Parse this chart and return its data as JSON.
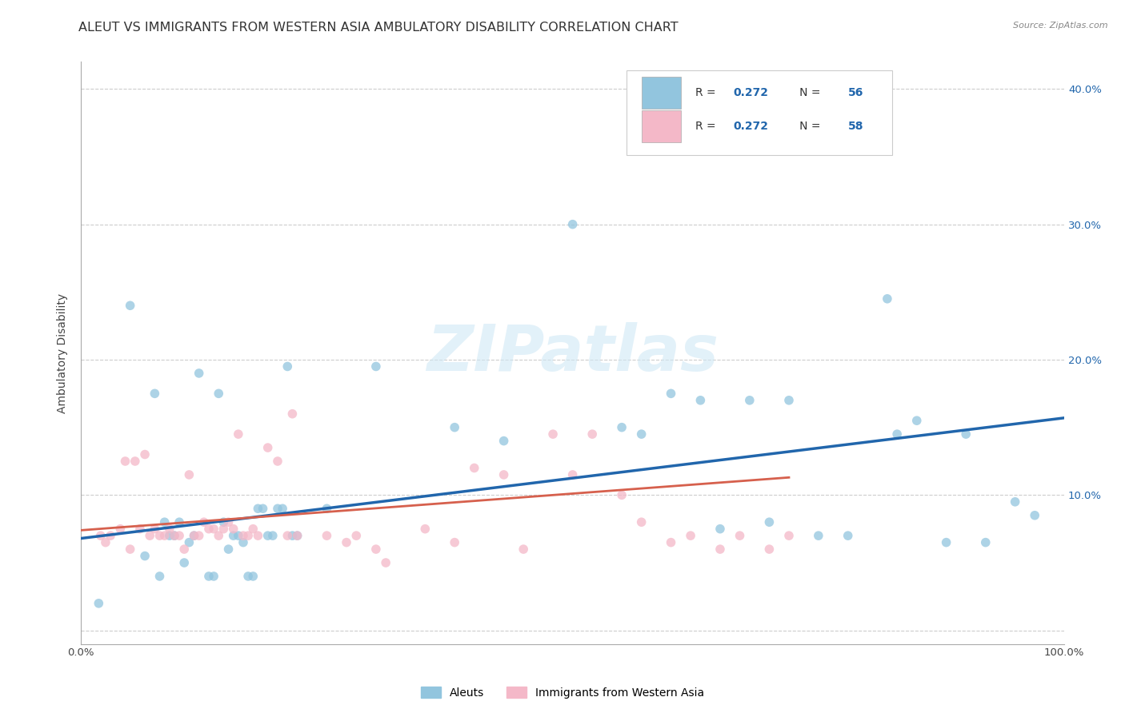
{
  "title": "ALEUT VS IMMIGRANTS FROM WESTERN ASIA AMBULATORY DISABILITY CORRELATION CHART",
  "source": "Source: ZipAtlas.com",
  "ylabel": "Ambulatory Disability",
  "xlim": [
    0,
    1.0
  ],
  "ylim": [
    -0.01,
    0.42
  ],
  "blue_color": "#92c5de",
  "pink_color": "#f4b8c8",
  "blue_line_color": "#2166ac",
  "pink_line_color": "#d6604d",
  "watermark_color": "#d0e8f5",
  "tick_color": "#2166ac",
  "label_color": "#444444",
  "grid_color": "#cccccc",
  "legend_label1": "Aleuts",
  "legend_label2": "Immigrants from Western Asia",
  "blue_x": [
    0.018,
    0.05,
    0.065,
    0.075,
    0.08,
    0.085,
    0.09,
    0.095,
    0.1,
    0.105,
    0.11,
    0.115,
    0.12,
    0.13,
    0.135,
    0.14,
    0.145,
    0.15,
    0.155,
    0.16,
    0.165,
    0.17,
    0.175,
    0.18,
    0.185,
    0.19,
    0.195,
    0.2,
    0.205,
    0.21,
    0.215,
    0.22,
    0.25,
    0.3,
    0.38,
    0.43,
    0.5,
    0.55,
    0.57,
    0.6,
    0.63,
    0.65,
    0.68,
    0.7,
    0.72,
    0.75,
    0.78,
    0.8,
    0.82,
    0.83,
    0.85,
    0.88,
    0.9,
    0.92,
    0.95,
    0.97
  ],
  "blue_y": [
    0.02,
    0.24,
    0.055,
    0.175,
    0.04,
    0.08,
    0.07,
    0.07,
    0.08,
    0.05,
    0.065,
    0.07,
    0.19,
    0.04,
    0.04,
    0.175,
    0.08,
    0.06,
    0.07,
    0.07,
    0.065,
    0.04,
    0.04,
    0.09,
    0.09,
    0.07,
    0.07,
    0.09,
    0.09,
    0.195,
    0.07,
    0.07,
    0.09,
    0.195,
    0.15,
    0.14,
    0.3,
    0.15,
    0.145,
    0.175,
    0.17,
    0.075,
    0.17,
    0.08,
    0.17,
    0.07,
    0.07,
    0.355,
    0.245,
    0.145,
    0.155,
    0.065,
    0.145,
    0.065,
    0.095,
    0.085
  ],
  "pink_x": [
    0.02,
    0.025,
    0.03,
    0.04,
    0.045,
    0.05,
    0.055,
    0.06,
    0.065,
    0.07,
    0.075,
    0.08,
    0.085,
    0.09,
    0.095,
    0.1,
    0.105,
    0.11,
    0.115,
    0.12,
    0.125,
    0.13,
    0.135,
    0.14,
    0.145,
    0.15,
    0.155,
    0.16,
    0.165,
    0.17,
    0.175,
    0.18,
    0.19,
    0.2,
    0.21,
    0.215,
    0.22,
    0.25,
    0.27,
    0.28,
    0.3,
    0.31,
    0.35,
    0.38,
    0.4,
    0.43,
    0.45,
    0.48,
    0.5,
    0.52,
    0.55,
    0.57,
    0.6,
    0.62,
    0.65,
    0.67,
    0.7,
    0.72
  ],
  "pink_y": [
    0.07,
    0.065,
    0.07,
    0.075,
    0.125,
    0.06,
    0.125,
    0.075,
    0.13,
    0.07,
    0.075,
    0.07,
    0.07,
    0.075,
    0.07,
    0.07,
    0.06,
    0.115,
    0.07,
    0.07,
    0.08,
    0.075,
    0.075,
    0.07,
    0.075,
    0.08,
    0.075,
    0.145,
    0.07,
    0.07,
    0.075,
    0.07,
    0.135,
    0.125,
    0.07,
    0.16,
    0.07,
    0.07,
    0.065,
    0.07,
    0.06,
    0.05,
    0.075,
    0.065,
    0.12,
    0.115,
    0.06,
    0.145,
    0.115,
    0.145,
    0.1,
    0.08,
    0.065,
    0.07,
    0.06,
    0.07,
    0.06,
    0.07
  ],
  "blue_trend_x": [
    0.0,
    1.0
  ],
  "blue_trend_y": [
    0.068,
    0.157
  ],
  "pink_trend_x": [
    0.0,
    0.72
  ],
  "pink_trend_y": [
    0.074,
    0.113
  ],
  "marker_size": 70,
  "title_fontsize": 11.5,
  "tick_fontsize": 9.5,
  "ylabel_fontsize": 10
}
